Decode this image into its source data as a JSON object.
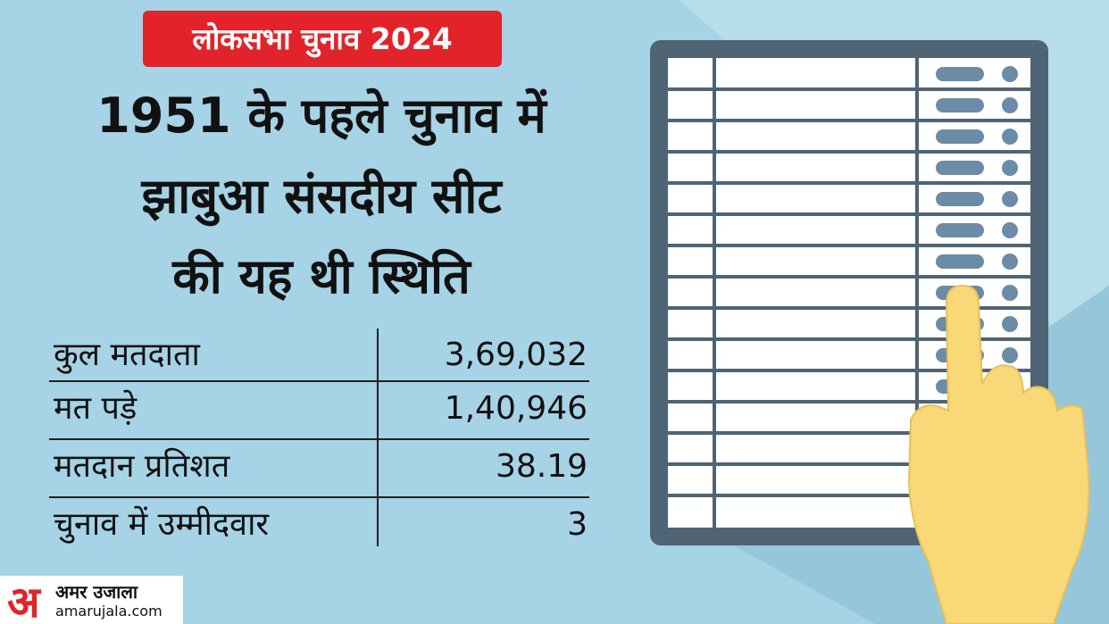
{
  "badge": "लोकसभा चुनाव 2024",
  "title": [
    "1951 के पहले चुनाव में",
    "झाबुआ संसदीय सीट",
    "की यह थी स्थिति"
  ],
  "table": {
    "rows": [
      [
        "कुल मतदाता",
        "3,69,032"
      ],
      [
        "मत पड़े",
        "1,40,946"
      ],
      [
        "मतदान प्रतिशत",
        "38.19"
      ],
      [
        "चुनाव में उम्मीदवार",
        "3"
      ]
    ]
  },
  "logo": {
    "mark": "अ",
    "name": "अमर उजाला",
    "site": "amarujala.com"
  }
}
